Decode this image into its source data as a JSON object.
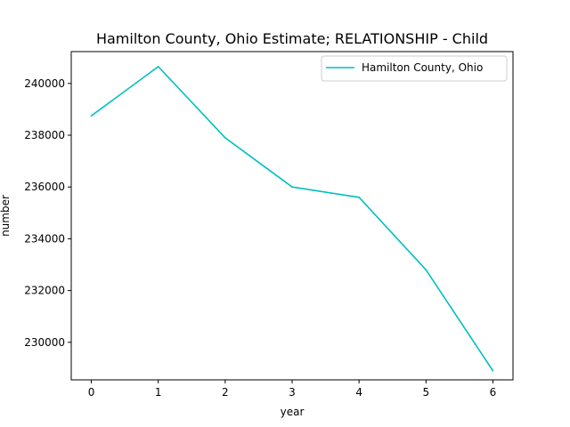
{
  "chart_data": {
    "type": "line",
    "title": "Hamilton County, Ohio Estimate; RELATIONSHIP - Child",
    "xlabel": "year",
    "ylabel": "number",
    "x": [
      0,
      1,
      2,
      3,
      4,
      5,
      6
    ],
    "xticks": [
      "0",
      "1",
      "2",
      "3",
      "4",
      "5",
      "6"
    ],
    "yticks": [
      "230000",
      "232000",
      "234000",
      "236000",
      "238000",
      "240000"
    ],
    "ytick_values": [
      230000,
      232000,
      234000,
      236000,
      238000,
      240000
    ],
    "xlim": [
      -0.3,
      6.3
    ],
    "ylim": [
      228550,
      241230
    ],
    "grid": false,
    "legend_position": "upper right",
    "series": [
      {
        "name": "Hamilton County, Ohio",
        "color": "#00bfbf",
        "values": [
          238750,
          240650,
          237900,
          236000,
          235600,
          232800,
          228900
        ]
      }
    ]
  }
}
